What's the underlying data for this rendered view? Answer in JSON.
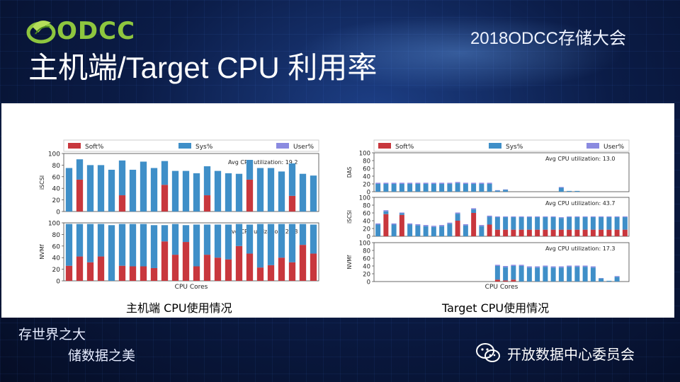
{
  "header": {
    "logo_text": "ODCC",
    "event_title": "2018ODCC存储大会",
    "page_title": "主机端/Target CPU 利用率"
  },
  "colors": {
    "soft": "#c8373d",
    "sys": "#3f8fc8",
    "user": "#8a8ae0"
  },
  "legend": {
    "soft": "Soft%",
    "sys": "Sys%",
    "user": "User%"
  },
  "captions": {
    "left": "主机端 CPU使用情况",
    "right": "Target CPU使用情况"
  },
  "footer": {
    "slogan_line1": "存世界之大",
    "slogan_line2": "储数据之美",
    "org_name": "开放数据中心委员会",
    "icon": "wechat-icon"
  },
  "chart_data": [
    {
      "type": "bar",
      "stacked": true,
      "xlabel": "CPU Cores",
      "ylim": [
        0,
        100
      ],
      "yticks": [
        0,
        20,
        40,
        60,
        80,
        100
      ],
      "legend_position": "top",
      "panels": [
        {
          "ylabel": "iSCSI",
          "annotation": "Avg CPU utilization: 19.2",
          "soft": [
            0,
            55,
            0,
            0,
            0,
            28,
            0,
            0,
            0,
            46,
            0,
            0,
            0,
            28,
            0,
            0,
            0,
            55,
            0,
            0,
            0,
            27,
            0,
            0
          ],
          "sys": [
            75,
            35,
            80,
            80,
            72,
            60,
            72,
            86,
            75,
            41,
            70,
            70,
            66,
            50,
            70,
            66,
            65,
            34,
            75,
            75,
            69,
            56,
            65,
            62
          ],
          "user": [
            0,
            0,
            0,
            0,
            0,
            0,
            0,
            0,
            0,
            0,
            0,
            0,
            0,
            0,
            0,
            0,
            0,
            0,
            0,
            0,
            0,
            0,
            0,
            0
          ]
        },
        {
          "ylabel": "NVMf",
          "annotation": "Avg CPU utilization: 24.8",
          "soft": [
            26,
            42,
            32,
            42,
            0,
            26,
            25,
            25,
            22,
            68,
            45,
            67,
            25,
            45,
            40,
            37,
            60,
            47,
            23,
            27,
            40,
            32,
            62,
            47
          ],
          "sys": [
            72,
            56,
            66,
            56,
            96,
            72,
            73,
            73,
            74,
            28,
            53,
            29,
            72,
            52,
            57,
            60,
            38,
            50,
            75,
            71,
            58,
            66,
            36,
            50
          ],
          "user": [
            0,
            0,
            0,
            0,
            0,
            0,
            0,
            0,
            0,
            0,
            0,
            0,
            0,
            0,
            0,
            0,
            0,
            0,
            0,
            0,
            0,
            0,
            0,
            0
          ]
        }
      ]
    },
    {
      "type": "bar",
      "stacked": true,
      "xlabel": "CPU Cores",
      "ylim": [
        0,
        100
      ],
      "yticks": [
        0,
        20,
        40,
        60,
        80,
        100
      ],
      "legend_position": "top",
      "panels": [
        {
          "ylabel": "DAS",
          "annotation": "Avg CPU utilization: 13.0",
          "soft": [
            0,
            0,
            0,
            0,
            0,
            0,
            0,
            0,
            0,
            0,
            0,
            0,
            0,
            0,
            0,
            0,
            0,
            0,
            0,
            0,
            0,
            0,
            0,
            0,
            0,
            0,
            0,
            0,
            0,
            0,
            0,
            0
          ],
          "sys": [
            20,
            20,
            20,
            20,
            20,
            20,
            20,
            20,
            20,
            20,
            22,
            20,
            20,
            20,
            20,
            3,
            5,
            0,
            0,
            0,
            0,
            0,
            0,
            10,
            2,
            2,
            0,
            0,
            0,
            0,
            0,
            0
          ],
          "user": [
            3,
            3,
            3,
            3,
            3,
            3,
            3,
            3,
            3,
            3,
            3,
            3,
            3,
            3,
            3,
            1,
            1,
            0,
            0,
            0,
            0,
            0,
            0,
            2,
            0,
            0,
            0,
            0,
            0,
            0,
            0,
            0
          ]
        },
        {
          "ylabel": "iSCSI",
          "annotation": "Avg CPU utilization: 43.7",
          "soft": [
            0,
            57,
            0,
            55,
            0,
            0,
            0,
            0,
            0,
            0,
            40,
            0,
            60,
            0,
            30,
            17,
            17,
            17,
            17,
            17,
            17,
            17,
            17,
            17,
            17,
            17,
            17,
            17,
            17,
            17,
            17,
            17
          ],
          "sys": [
            30,
            7,
            30,
            4,
            30,
            28,
            26,
            24,
            26,
            32,
            18,
            28,
            9,
            26,
            20,
            32,
            32,
            32,
            32,
            32,
            32,
            32,
            32,
            30,
            32,
            32,
            32,
            32,
            32,
            32,
            32,
            32
          ],
          "user": [
            3,
            3,
            3,
            2,
            3,
            3,
            3,
            3,
            3,
            3,
            3,
            3,
            3,
            3,
            3,
            2,
            2,
            2,
            2,
            2,
            2,
            2,
            2,
            2,
            2,
            2,
            2,
            2,
            2,
            2,
            2,
            2
          ]
        },
        {
          "ylabel": "NVMf",
          "annotation": "Avg CPU utilization: 17.3",
          "soft": [
            0,
            0,
            0,
            0,
            0,
            0,
            0,
            0,
            0,
            0,
            0,
            0,
            0,
            0,
            0,
            5,
            3,
            5,
            0,
            0,
            0,
            0,
            0,
            0,
            0,
            0,
            0,
            0,
            0,
            0,
            0,
            0
          ],
          "sys": [
            0,
            0,
            0,
            0,
            0,
            0,
            0,
            0,
            0,
            0,
            0,
            0,
            0,
            0,
            0,
            35,
            34,
            35,
            40,
            36,
            36,
            38,
            36,
            36,
            38,
            38,
            38,
            36,
            8,
            2,
            12,
            0
          ],
          "user": [
            0,
            0,
            0,
            0,
            0,
            0,
            0,
            0,
            0,
            0,
            0,
            0,
            0,
            0,
            0,
            3,
            3,
            3,
            3,
            3,
            3,
            3,
            3,
            3,
            3,
            3,
            3,
            3,
            1,
            0,
            2,
            0
          ]
        }
      ]
    }
  ]
}
